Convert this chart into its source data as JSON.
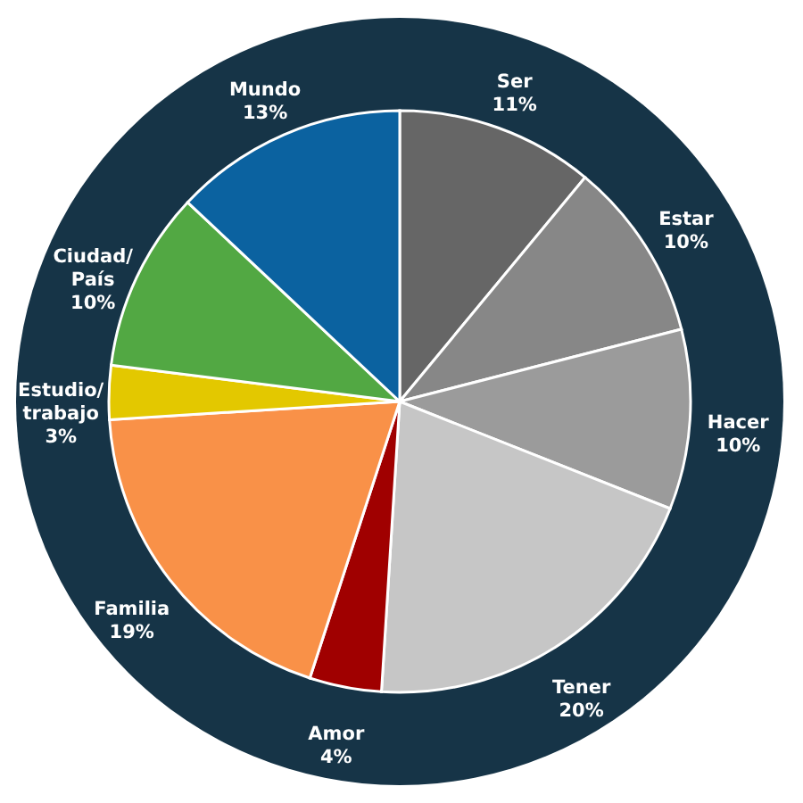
{
  "chart_data": {
    "type": "pie",
    "categories": [
      "Ser",
      "Estar",
      "Hacer",
      "Tener",
      "Amor",
      "Familia",
      "Estudio/trabajo",
      "Ciudad/País",
      "Mundo"
    ],
    "values": [
      11,
      10,
      10,
      20,
      4,
      19,
      3,
      10,
      13
    ],
    "value_labels": [
      "11%",
      "10%",
      "10%",
      "20%",
      "4%",
      "19%",
      "3%",
      "10%",
      "13%"
    ],
    "colors": [
      "#666666",
      "#878787",
      "#9b9b9b",
      "#c6c6c6",
      "#a00000",
      "#f99148",
      "#e3c800",
      "#52a843",
      "#0b62a0"
    ]
  }
}
